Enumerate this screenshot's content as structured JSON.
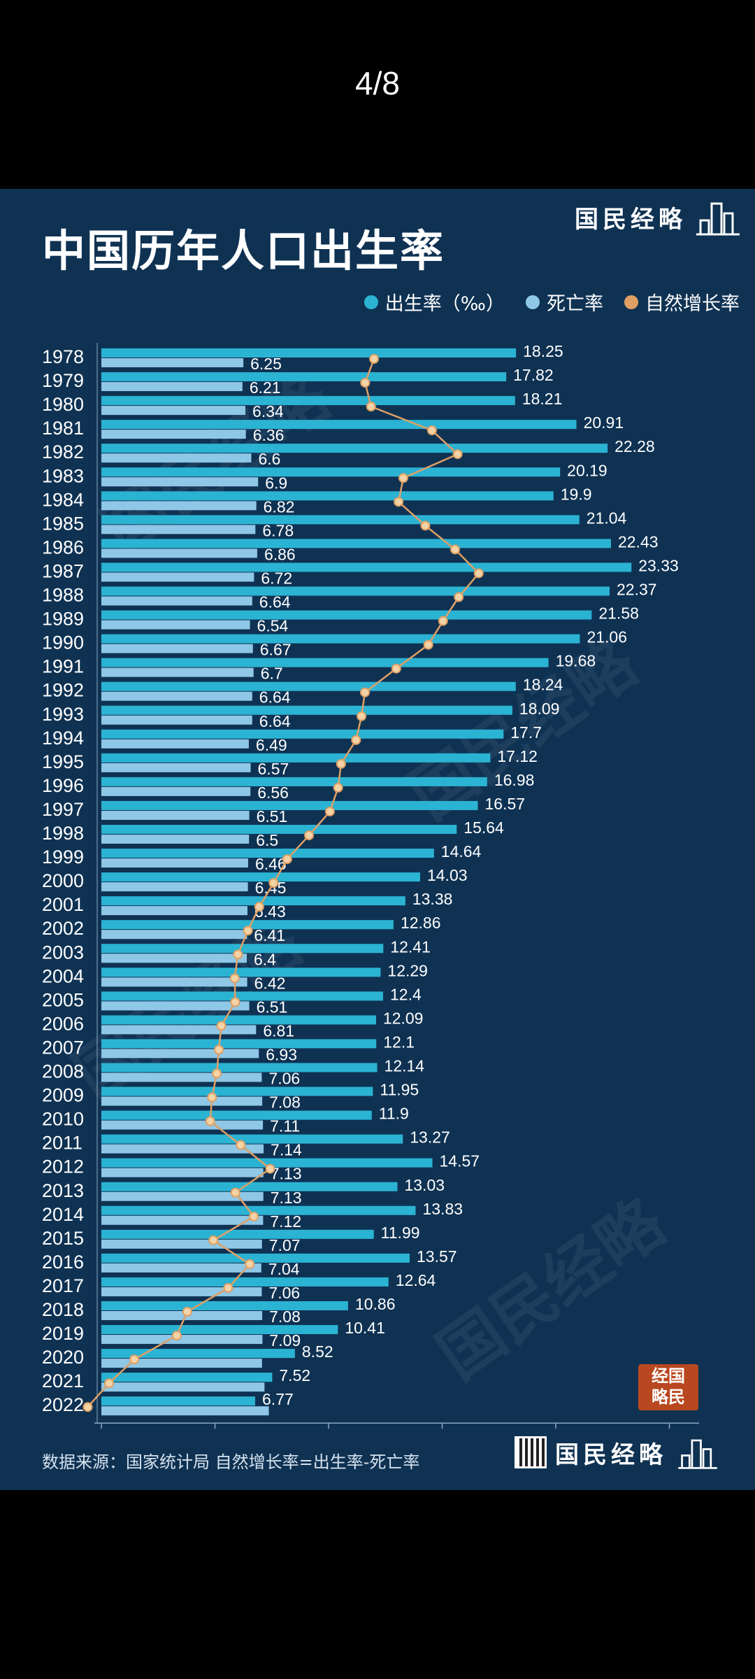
{
  "page_indicator": "4/8",
  "brand": {
    "name": "国民经略",
    "seal_text": "经国略民"
  },
  "colors": {
    "background": "#0f3253",
    "birth_rate": "#2bb3d3",
    "death_rate": "#8fc7e6",
    "natural_growth": "#e0a064",
    "text": "#ffffff"
  },
  "chart_data": {
    "type": "bar",
    "title": "中国历年人口出生率",
    "legend": [
      "出生率（‰）",
      "死亡率",
      "自然增长率"
    ],
    "categories": [
      "1978",
      "1979",
      "1980",
      "1981",
      "1982",
      "1983",
      "1984",
      "1985",
      "1986",
      "1987",
      "1988",
      "1989",
      "1990",
      "1991",
      "1992",
      "1993",
      "1994",
      "1995",
      "1996",
      "1997",
      "1998",
      "1999",
      "2000",
      "2001",
      "2002",
      "2003",
      "2004",
      "2005",
      "2006",
      "2007",
      "2008",
      "2009",
      "2010",
      "2011",
      "2012",
      "2013",
      "2014",
      "2015",
      "2016",
      "2017",
      "2018",
      "2019",
      "2020",
      "2021",
      "2022"
    ],
    "series": [
      {
        "name": "出生率（‰）",
        "values": [
          18.25,
          17.82,
          18.21,
          20.91,
          22.28,
          20.19,
          19.9,
          21.04,
          22.43,
          23.33,
          22.37,
          21.58,
          21.06,
          19.68,
          18.24,
          18.09,
          17.7,
          17.12,
          16.98,
          16.57,
          15.64,
          14.64,
          14.03,
          13.38,
          12.86,
          12.41,
          12.29,
          12.4,
          12.09,
          12.1,
          12.14,
          11.95,
          11.9,
          13.27,
          14.57,
          13.03,
          13.83,
          11.99,
          13.57,
          12.64,
          10.86,
          10.41,
          8.52,
          7.52,
          6.77
        ]
      },
      {
        "name": "死亡率",
        "values": [
          6.25,
          6.21,
          6.34,
          6.36,
          6.6,
          6.9,
          6.82,
          6.78,
          6.86,
          6.72,
          6.64,
          6.54,
          6.67,
          6.7,
          6.64,
          6.64,
          6.49,
          6.57,
          6.56,
          6.51,
          6.5,
          6.46,
          6.45,
          6.43,
          6.41,
          6.4,
          6.42,
          6.51,
          6.81,
          6.93,
          7.06,
          7.08,
          7.11,
          7.14,
          7.13,
          7.13,
          7.12,
          7.07,
          7.04,
          7.06,
          7.08,
          7.09,
          7.07,
          7.18,
          7.37
        ]
      },
      {
        "name": "自然增长率",
        "values": [
          12,
          11.61,
          11.87,
          14.55,
          15.68,
          13.29,
          13.08,
          14.26,
          15.57,
          16.61,
          15.73,
          15.04,
          14.39,
          12.98,
          11.6,
          11.45,
          11.21,
          10.55,
          10.42,
          10.06,
          9.14,
          8.18,
          7.58,
          6.95,
          6.45,
          6.01,
          5.87,
          5.89,
          5.28,
          5.17,
          5.08,
          4.87,
          4.79,
          6.13,
          7.43,
          5.9,
          6.71,
          4.93,
          6.53,
          5.58,
          3.78,
          3.32,
          1.45,
          0.34,
          -0.6
        ]
      }
    ],
    "x_axis": {
      "unit": "‰",
      "range": [
        -1,
        26
      ]
    },
    "death_labels_shown_through": "2019"
  },
  "footnote": "数据来源：国家统计局 自然增长率=出生率-死亡率"
}
